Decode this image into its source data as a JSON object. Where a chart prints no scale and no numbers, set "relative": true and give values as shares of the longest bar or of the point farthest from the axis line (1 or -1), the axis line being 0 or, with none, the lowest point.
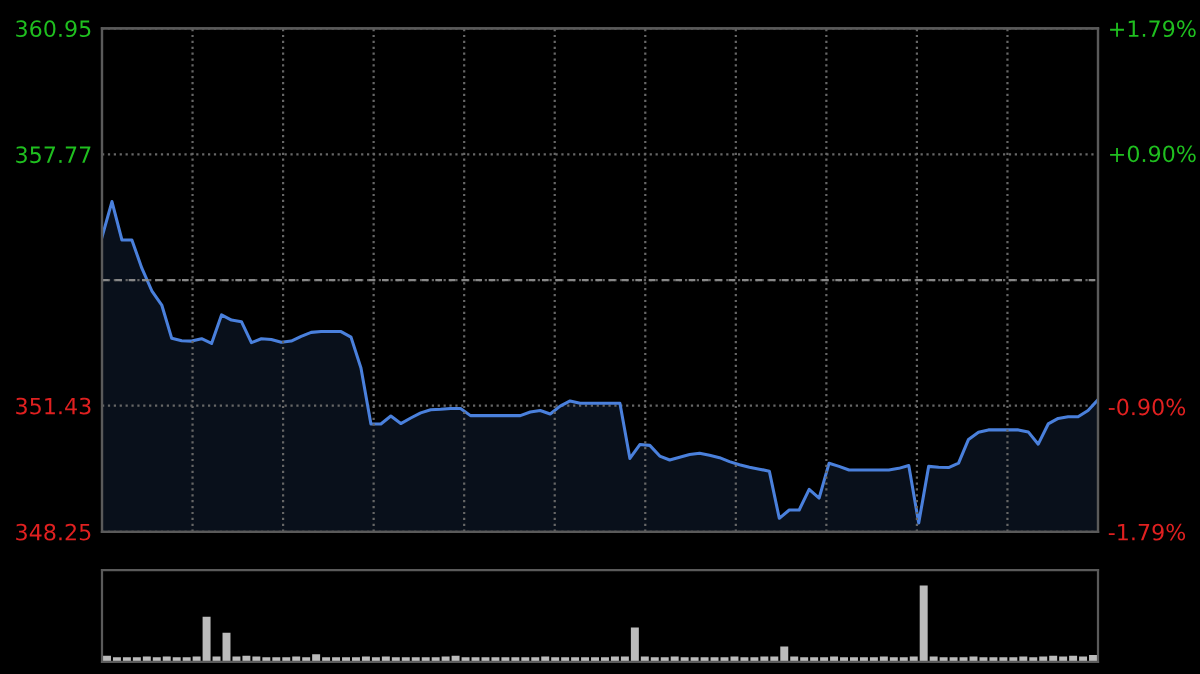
{
  "chart_data": [
    {
      "type": "area",
      "categories": [
        null,
        null,
        null,
        null,
        null,
        null,
        null,
        null,
        null,
        null,
        null,
        null,
        null,
        null,
        null,
        null,
        null,
        null,
        null,
        null,
        null,
        null,
        null,
        null,
        null,
        null,
        null,
        null,
        null,
        null,
        null,
        null,
        null,
        null,
        null,
        null,
        null,
        null,
        null,
        null,
        null,
        null,
        null,
        null,
        null,
        null,
        null,
        null,
        null,
        null,
        null,
        null,
        null,
        null,
        null,
        null,
        null,
        null,
        null,
        null,
        null,
        null,
        null,
        null,
        null,
        null,
        null,
        null,
        null,
        null,
        null,
        null,
        null,
        null,
        null,
        null,
        null,
        null,
        null,
        null,
        null,
        null,
        null,
        null,
        null,
        null,
        null,
        null,
        null,
        null,
        null,
        null,
        null,
        null,
        null,
        null,
        null,
        null,
        null,
        null,
        null
      ],
      "series": [
        {
          "color": "#4a80dc",
          "values": [
            355.68,
            356.58,
            355.61,
            355.61,
            354.9,
            354.33,
            353.97,
            353.13,
            353.07,
            353.06,
            353.12,
            353.0,
            353.72,
            353.59,
            353.55,
            353.02,
            353.12,
            353.1,
            353.03,
            353.06,
            353.18,
            353.28,
            353.3,
            353.3,
            353.3,
            353.16,
            352.38,
            350.97,
            350.97,
            351.17,
            350.98,
            351.12,
            351.25,
            351.33,
            351.34,
            351.36,
            351.36,
            351.18,
            351.18,
            351.18,
            351.18,
            351.18,
            351.18,
            351.27,
            351.31,
            351.22,
            351.42,
            351.55,
            351.49,
            351.49,
            351.49,
            351.49,
            351.49,
            350.1,
            350.45,
            350.43,
            350.16,
            350.06,
            350.13,
            350.2,
            350.23,
            350.18,
            350.12,
            350.02,
            349.94,
            349.88,
            349.83,
            349.78,
            348.59,
            348.8,
            348.8,
            349.32,
            349.1,
            349.98,
            349.9,
            349.81,
            349.81,
            349.81,
            349.81,
            349.81,
            349.85,
            349.92,
            348.47,
            349.9,
            349.88,
            349.87,
            349.98,
            350.58,
            350.76,
            350.82,
            350.82,
            350.82,
            350.82,
            350.77,
            350.46,
            350.97,
            351.11,
            351.15,
            351.15,
            351.31,
            351.58
          ]
        }
      ],
      "ylim": [
        348.25,
        360.95
      ],
      "yticks": [
        348.25,
        351.43,
        {
          "value": 354.6,
          "label": null
        },
        357.77,
        360.95
      ],
      "y2lim": [
        -1.79,
        1.79
      ],
      "y2ticks": [
        {
          "value": -1.79,
          "label": "-1.79%"
        },
        {
          "value": -0.9,
          "label": "-0.90%"
        },
        {
          "value": 0,
          "label": null
        },
        {
          "value": 0.9,
          "label": "+0.90%"
        },
        {
          "value": 1.79,
          "label": "+1.79%"
        }
      ],
      "ref_lines": [
        {
          "axis": "y",
          "value": 354.6,
          "color": "#888888",
          "line_style": "dashed"
        }
      ],
      "grid": true,
      "legend": false
    },
    {
      "type": "bar",
      "relative": true,
      "categories": [
        null,
        null,
        null,
        null,
        null,
        null,
        null,
        null,
        null,
        null,
        null,
        null,
        null,
        null,
        null,
        null,
        null,
        null,
        null,
        null,
        null,
        null,
        null,
        null,
        null,
        null,
        null,
        null,
        null,
        null,
        null,
        null,
        null,
        null,
        null,
        null,
        null,
        null,
        null,
        null,
        null,
        null,
        null,
        null,
        null,
        null,
        null,
        null,
        null,
        null,
        null,
        null,
        null,
        null,
        null,
        null,
        null,
        null,
        null,
        null,
        null,
        null,
        null,
        null,
        null,
        null,
        null,
        null,
        null,
        null,
        null,
        null,
        null,
        null,
        null,
        null,
        null,
        null,
        null,
        null,
        null,
        null,
        null,
        null,
        null,
        null,
        null,
        null,
        null,
        null,
        null,
        null,
        null,
        null,
        null,
        null,
        null,
        null,
        null,
        null
      ],
      "series": [
        {
          "color": "#bbbbbb",
          "values": [
            0.08,
            0.06,
            0.06,
            0.06,
            0.07,
            0.06,
            0.07,
            0.06,
            0.06,
            0.07,
            0.59,
            0.07,
            0.38,
            0.07,
            0.08,
            0.07,
            0.06,
            0.06,
            0.06,
            0.07,
            0.06,
            0.1,
            0.06,
            0.06,
            0.06,
            0.06,
            0.07,
            0.06,
            0.07,
            0.06,
            0.06,
            0.06,
            0.06,
            0.06,
            0.07,
            0.08,
            0.06,
            0.06,
            0.06,
            0.06,
            0.06,
            0.06,
            0.06,
            0.06,
            0.07,
            0.06,
            0.06,
            0.06,
            0.06,
            0.06,
            0.06,
            0.07,
            0.07,
            0.45,
            0.07,
            0.06,
            0.06,
            0.07,
            0.06,
            0.06,
            0.06,
            0.06,
            0.06,
            0.07,
            0.06,
            0.06,
            0.07,
            0.07,
            0.2,
            0.07,
            0.06,
            0.06,
            0.06,
            0.07,
            0.06,
            0.06,
            0.06,
            0.06,
            0.07,
            0.06,
            0.06,
            0.07,
            1.0,
            0.07,
            0.06,
            0.06,
            0.06,
            0.07,
            0.06,
            0.06,
            0.06,
            0.06,
            0.07,
            0.06,
            0.07,
            0.08,
            0.07,
            0.08,
            0.07,
            0.09
          ]
        }
      ],
      "grid": false,
      "legend": false
    }
  ]
}
